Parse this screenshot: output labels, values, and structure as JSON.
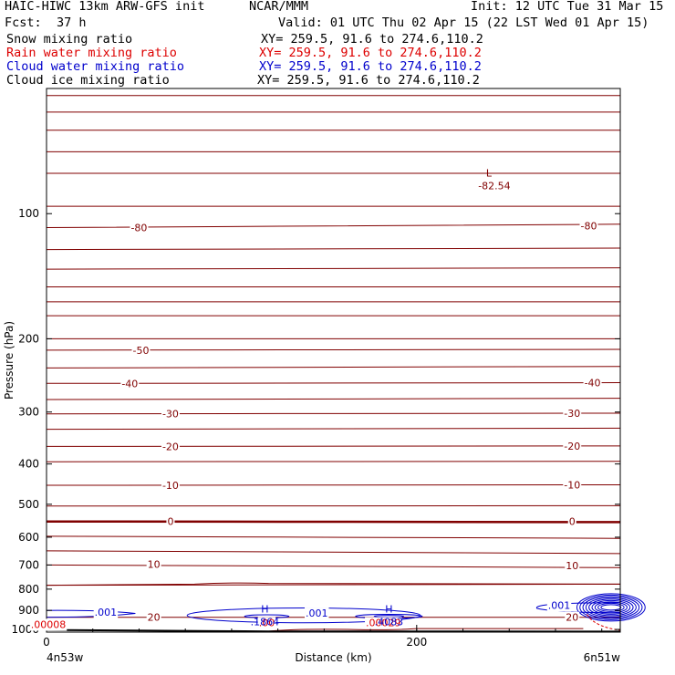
{
  "header": {
    "model": "HAIC-HIWC 13km ARW-GFS init",
    "org": "NCAR/MMM",
    "init": "Init: 12 UTC Tue 31 Mar 15",
    "fcst_label": "Fcst:",
    "fcst_value": "37 h",
    "valid": "Valid: 01 UTC Thu 02 Apr 15 (22 LST Wed 01 Apr 15)"
  },
  "legend": [
    {
      "name": "Snow mixing ratio",
      "xy": "XY= 259.5, 91.6 to 274.6,110.2",
      "color": "#000000"
    },
    {
      "name": "Rain water mixing ratio",
      "xy": "XY= 259.5, 91.6 to 274.6,110.2",
      "color": "#dd0000"
    },
    {
      "name": "Cloud water mixing ratio",
      "xy": "XY= 259.5, 91.6 to 274.6,110.2",
      "color": "#0000cc"
    },
    {
      "name": "Cloud ice mixing ratio",
      "xy": "XY= 259.5, 91.6 to 274.6,110.2",
      "color": "#000000"
    }
  ],
  "colors": {
    "temperature": "#800000",
    "zero_isotherm": "#800000",
    "cloud_water": "#0000cc",
    "rain": "#dd0000",
    "terrain": "#000000"
  },
  "chart_data": {
    "type": "cross-section",
    "xlabel": "Distance (km)",
    "ylabel": "Pressure (hPa)",
    "xlim": [
      0,
      310
    ],
    "ylim": [
      1015,
      50
    ],
    "yscale": "log",
    "x_ticks": [
      "0",
      "200"
    ],
    "y_ticks": [
      "100",
      "200",
      "300",
      "400",
      "500",
      "600",
      "700",
      "800",
      "900",
      "1000"
    ],
    "endpoints": {
      "left": "4n53w",
      "right": "6n51w"
    },
    "temperature_labels": [
      {
        "text": "-80",
        "x": 50,
        "p": 108
      },
      {
        "text": "-80",
        "x": 293,
        "p": 107
      },
      {
        "text": "-50",
        "x": 51,
        "p": 213
      },
      {
        "text": "-40",
        "x": 45,
        "p": 256
      },
      {
        "text": "-40",
        "x": 295,
        "p": 255
      },
      {
        "text": "-30",
        "x": 67,
        "p": 303
      },
      {
        "text": "-30",
        "x": 284,
        "p": 302
      },
      {
        "text": "-20",
        "x": 67,
        "p": 363
      },
      {
        "text": "-20",
        "x": 284,
        "p": 362
      },
      {
        "text": "-10",
        "x": 67,
        "p": 450
      },
      {
        "text": "-10",
        "x": 284,
        "p": 449
      },
      {
        "text": "0",
        "x": 67,
        "p": 550
      },
      {
        "text": "0",
        "x": 284,
        "p": 550
      },
      {
        "text": "10",
        "x": 58,
        "p": 697
      },
      {
        "text": "10",
        "x": 284,
        "p": 702
      },
      {
        "text": "20",
        "x": 58,
        "p": 935
      },
      {
        "text": "20",
        "x": 284,
        "p": 935
      }
    ],
    "extrema": [
      {
        "text": "L",
        "value": "-82.54",
        "x": 239,
        "p": 83
      },
      {
        "text": "H",
        "value": ".1864",
        "x": 118,
        "p": 928
      },
      {
        "text": "H",
        "value": ".4083",
        "x": 185,
        "p": 928
      }
    ],
    "cloud_labels": [
      {
        "text": ".001",
        "x": 32,
        "p": 908
      },
      {
        "text": ".001",
        "x": 146,
        "p": 913
      },
      {
        "text": ".001",
        "x": 277,
        "p": 875
      }
    ],
    "rain_labels": [
      {
        "text": ".00",
        "x": 119,
        "p": 962
      },
      {
        "text": ".00008",
        "x": 1,
        "p": 972
      },
      {
        "text": ".00029",
        "x": 182,
        "p": 963
      }
    ],
    "grid": false
  }
}
